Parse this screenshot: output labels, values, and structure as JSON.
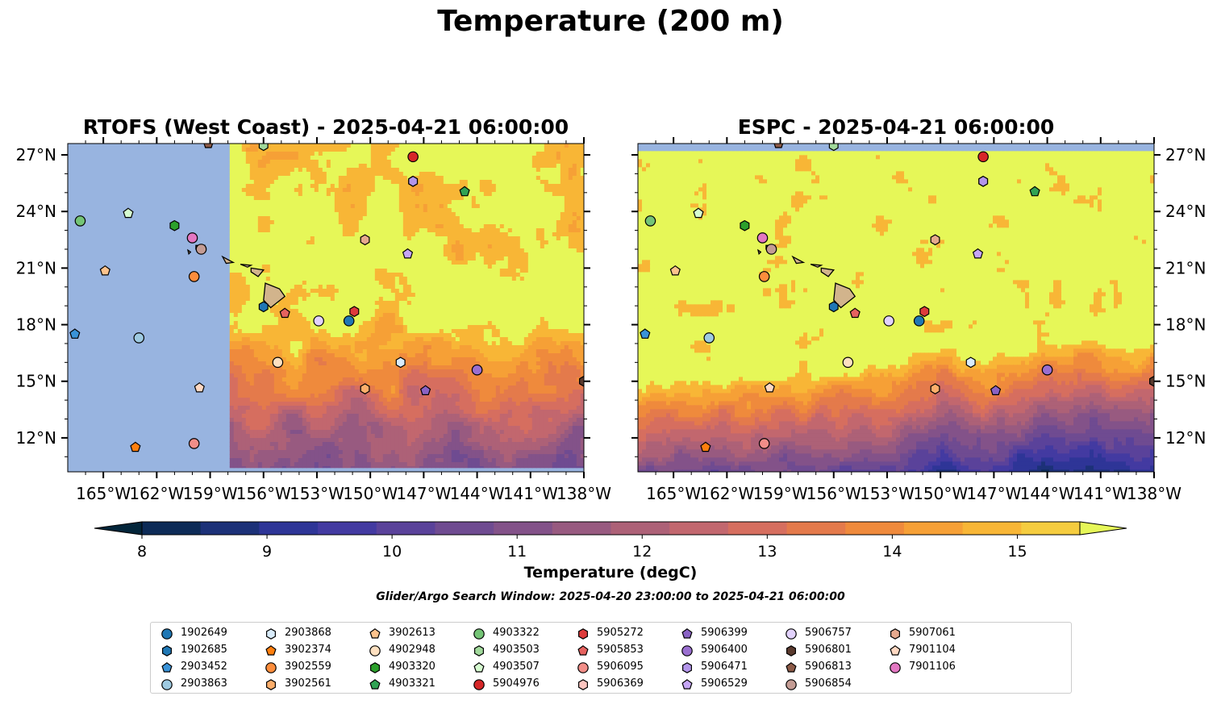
{
  "suptitle": "Temperature (200 m)",
  "panels": [
    {
      "title": "RTOFS (West Coast) - 2025-04-21 06:00:00",
      "model": "rtofs"
    },
    {
      "title": "ESPC - 2025-04-21 06:00:00",
      "model": "espc"
    }
  ],
  "colorbar": {
    "label": "Temperature (degC)",
    "ticks": [
      "8",
      "9",
      "10",
      "11",
      "12",
      "13",
      "14",
      "15"
    ],
    "min": 7.5,
    "max": 15.5,
    "step": 0.5,
    "colors": [
      "#03253a",
      "#0d2b57",
      "#1c3178",
      "#2e3597",
      "#433aa1",
      "#5a429a",
      "#6f4b91",
      "#835289",
      "#985a80",
      "#ad6177",
      "#c2676e",
      "#d66e5f",
      "#e47a4b",
      "#ef8a3c",
      "#f6a036",
      "#f8b636",
      "#f5cc3f",
      "#eee24c"
    ],
    "over_color": "#e6f758"
  },
  "search_window": "Glider/Argo Search Window: 2025-04-20 23:00:00 to 2025-04-21 06:00:00",
  "chart_data": {
    "type": "map",
    "xlabel": "",
    "ylabel": "",
    "xlim": [
      -167,
      -138
    ],
    "ylim": [
      10.2,
      27.6
    ],
    "xticks": [
      "165°W",
      "162°W",
      "159°W",
      "156°W",
      "153°W",
      "150°W",
      "147°W",
      "144°W",
      "141°W",
      "138°W"
    ],
    "yticks": [
      "12°N",
      "15°N",
      "18°N",
      "21°N",
      "24°N",
      "27°N"
    ],
    "floats": [
      {
        "id": "1902649",
        "marker": "o",
        "color": "#1f77b4",
        "lon": -151.2,
        "lat": 18.2
      },
      {
        "id": "1902685",
        "marker": "h",
        "color": "#1f77b4",
        "lon": -156.0,
        "lat": 18.95
      },
      {
        "id": "2903452",
        "marker": "p",
        "color": "#3a93d8",
        "lon": -166.6,
        "lat": 17.5
      },
      {
        "id": "2903863",
        "marker": "o",
        "color": "#9ecae1",
        "lon": -163.0,
        "lat": 17.3
      },
      {
        "id": "2903868",
        "marker": "h",
        "color": "#d9ecfb",
        "lon": -148.3,
        "lat": 16.0
      },
      {
        "id": "3902374",
        "marker": "p",
        "color": "#ff7f0e",
        "lon": -163.2,
        "lat": 11.5
      },
      {
        "id": "3902559",
        "marker": "o",
        "color": "#fd8d3c",
        "lon": -159.9,
        "lat": 20.55
      },
      {
        "id": "3902561",
        "marker": "h",
        "color": "#fdae6b",
        "lon": -150.3,
        "lat": 14.6
      },
      {
        "id": "3902613",
        "marker": "p",
        "color": "#fdc38d",
        "lon": -164.9,
        "lat": 20.85
      },
      {
        "id": "4902948",
        "marker": "o",
        "color": "#fee0c0",
        "lon": -155.2,
        "lat": 16.0
      },
      {
        "id": "4903320",
        "marker": "h",
        "color": "#2ca02c",
        "lon": -161.0,
        "lat": 23.25
      },
      {
        "id": "4903321",
        "marker": "p",
        "color": "#31a354",
        "lon": -144.7,
        "lat": 25.05
      },
      {
        "id": "4903322",
        "marker": "o",
        "color": "#74c476",
        "lon": -166.3,
        "lat": 23.5
      },
      {
        "id": "4903503",
        "marker": "h",
        "color": "#a1d99b",
        "lon": -156.0,
        "lat": 27.5
      },
      {
        "id": "4903507",
        "marker": "p",
        "color": "#d6fcd0",
        "lon": -163.6,
        "lat": 23.9
      },
      {
        "id": "5904976",
        "marker": "o",
        "color": "#d62728",
        "lon": -147.6,
        "lat": 26.9
      },
      {
        "id": "5905272",
        "marker": "h",
        "color": "#de3b3b",
        "lon": -150.9,
        "lat": 18.7
      },
      {
        "id": "5905853",
        "marker": "p",
        "color": "#e6625f",
        "lon": -154.8,
        "lat": 18.6
      },
      {
        "id": "5906095",
        "marker": "o",
        "color": "#f28e88",
        "lon": -159.9,
        "lat": 11.7
      },
      {
        "id": "5906369",
        "marker": "h",
        "color": "#fcc5c0",
        "lon": -147.6,
        "lat": 25.6
      },
      {
        "id": "5906399",
        "marker": "p",
        "color": "#8a63c5",
        "lon": -146.9,
        "lat": 14.5
      },
      {
        "id": "5906400",
        "marker": "o",
        "color": "#9a6fd0",
        "lon": -144.0,
        "lat": 15.6
      },
      {
        "id": "5906471",
        "marker": "h",
        "color": "#b395ea",
        "lon": -147.6,
        "lat": 25.6
      },
      {
        "id": "5906529",
        "marker": "p",
        "color": "#c6a6f5",
        "lon": -147.9,
        "lat": 21.75
      },
      {
        "id": "5906757",
        "marker": "o",
        "color": "#e2d2fd",
        "lon": -152.9,
        "lat": 18.2
      },
      {
        "id": "5906801",
        "marker": "h",
        "color": "#5a3a2e",
        "lon": -138.0,
        "lat": 15.0
      },
      {
        "id": "5906813",
        "marker": "p",
        "color": "#8c5a47",
        "lon": -159.1,
        "lat": 27.6
      },
      {
        "id": "5906854",
        "marker": "o",
        "color": "#c49c94",
        "lon": -159.5,
        "lat": 22.0
      },
      {
        "id": "5907061",
        "marker": "h",
        "color": "#e6a98e",
        "lon": -150.3,
        "lat": 22.5
      },
      {
        "id": "7901104",
        "marker": "p",
        "color": "#ffd8c2",
        "lon": -159.6,
        "lat": 14.65
      },
      {
        "id": "7901106",
        "marker": "o",
        "color": "#e377c2",
        "lon": -160.0,
        "lat": 22.6
      }
    ]
  }
}
